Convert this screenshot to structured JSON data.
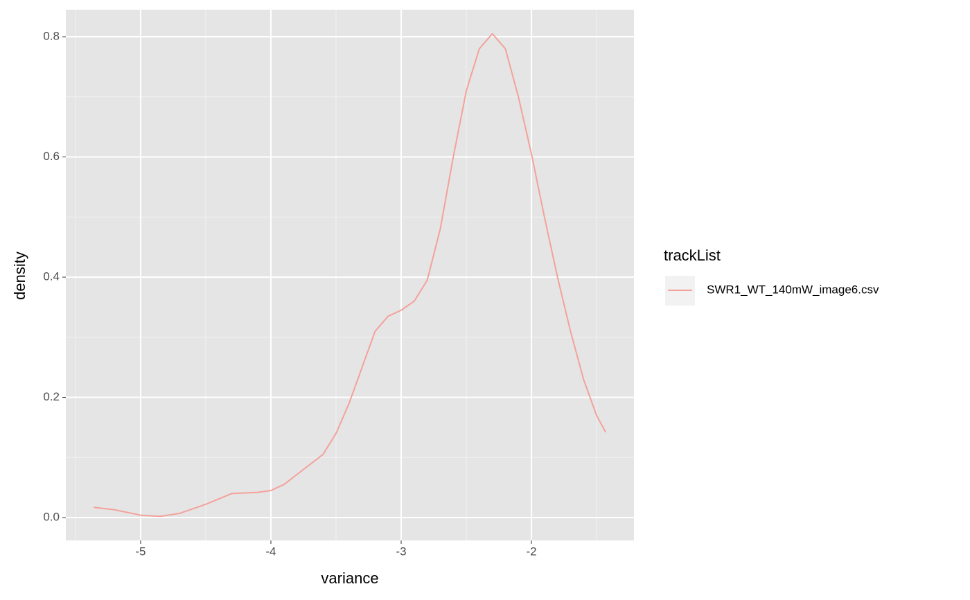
{
  "chart_data": {
    "type": "line",
    "x_label": "variance",
    "y_label": "density",
    "legend_title": "trackList",
    "legend_position": "right",
    "x": [
      -5.36,
      -5.2,
      -5.0,
      -4.85,
      -4.7,
      -4.5,
      -4.3,
      -4.1,
      -4.0,
      -3.9,
      -3.75,
      -3.6,
      -3.5,
      -3.4,
      -3.3,
      -3.2,
      -3.1,
      -3.0,
      -2.9,
      -2.8,
      -2.7,
      -2.6,
      -2.5,
      -2.4,
      -2.3,
      -2.2,
      -2.1,
      -2.0,
      -1.9,
      -1.8,
      -1.7,
      -1.6,
      -1.5,
      -1.43
    ],
    "series": [
      {
        "name": "SWR1_WT_140mW_image6.csv",
        "color": "#f4a19b",
        "values": [
          0.017,
          0.013,
          0.004,
          0.002,
          0.007,
          0.022,
          0.04,
          0.042,
          0.045,
          0.055,
          0.08,
          0.105,
          0.14,
          0.19,
          0.25,
          0.31,
          0.335,
          0.345,
          0.36,
          0.395,
          0.48,
          0.6,
          0.71,
          0.78,
          0.805,
          0.78,
          0.7,
          0.605,
          0.5,
          0.4,
          0.31,
          0.23,
          0.17,
          0.142
        ]
      }
    ],
    "xlim": [
      -5.574,
      -1.213
    ],
    "ylim": [
      -0.038,
      0.845
    ],
    "xticks": [
      -5,
      -4,
      -3,
      -2
    ],
    "yticks": [
      {
        "value": 0,
        "label": "0.0"
      },
      0.2,
      0.4,
      0.6,
      0.8
    ],
    "grid": true,
    "minor_grid": true
  }
}
